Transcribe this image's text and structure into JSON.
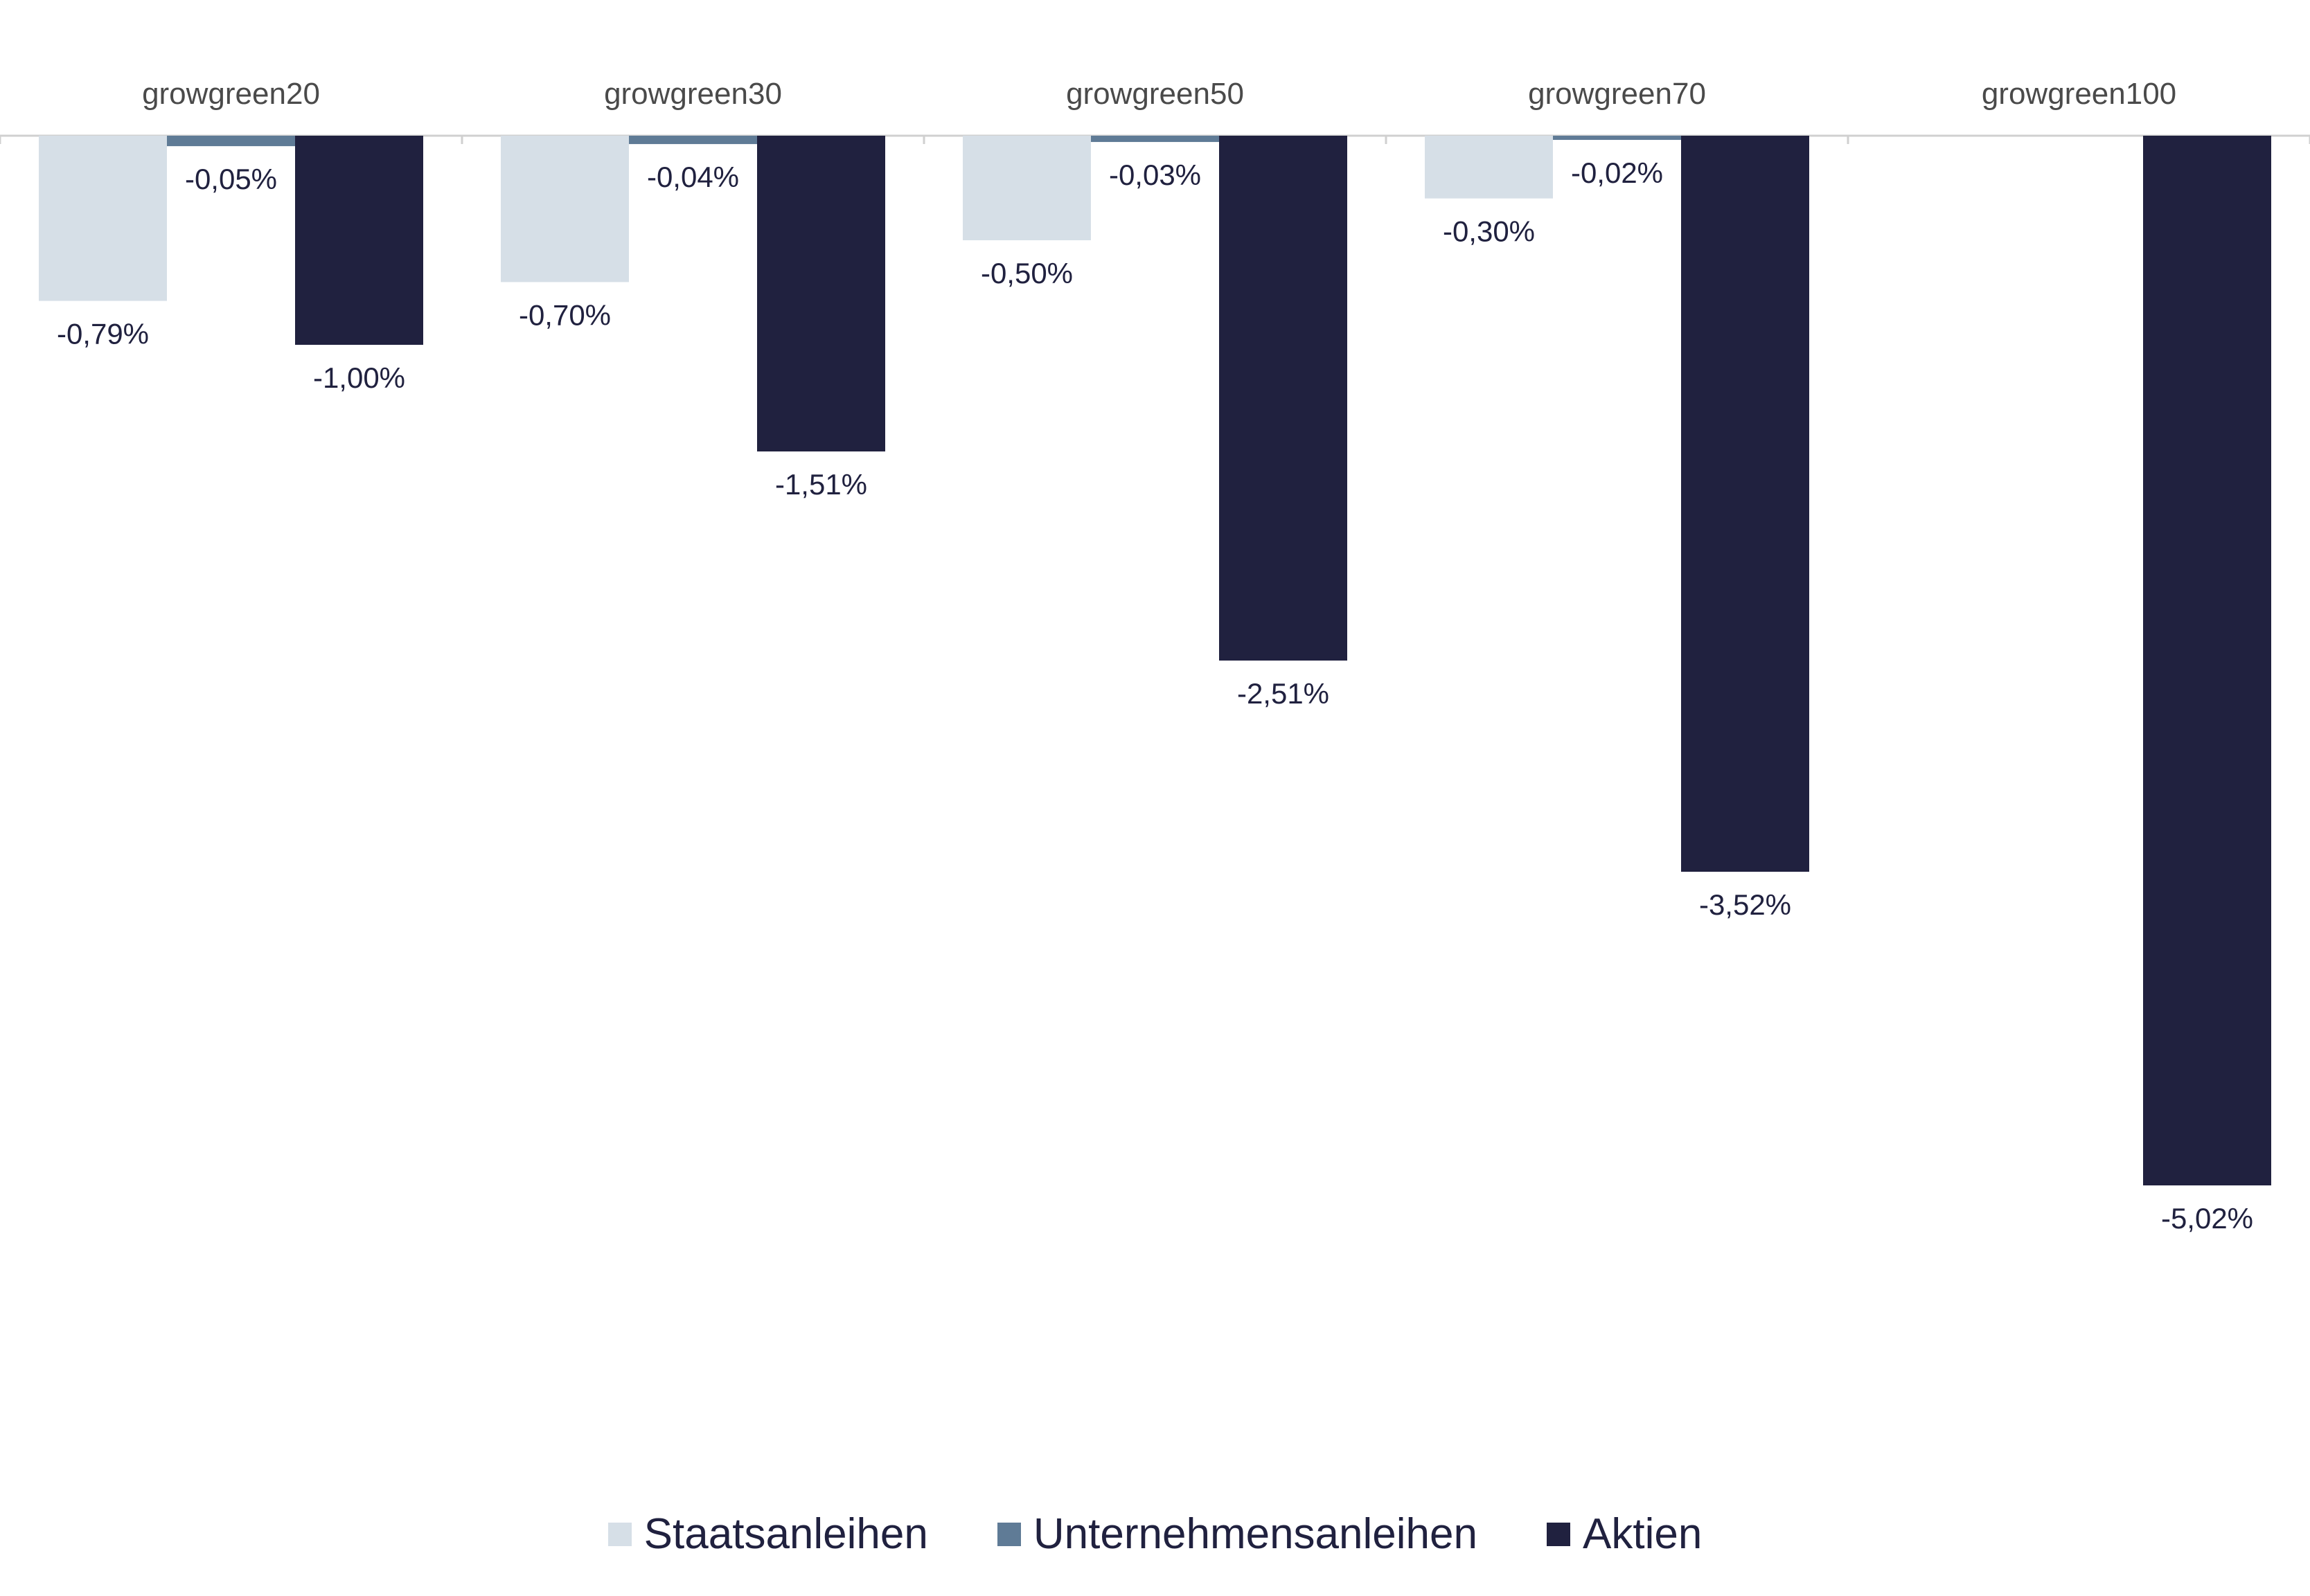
{
  "chart_data": {
    "type": "bar",
    "orientation": "vertical",
    "categories": [
      "growgreen20",
      "growgreen30",
      "growgreen50",
      "growgreen70",
      "growgreen100"
    ],
    "series": [
      {
        "name": "Staatsanleihen",
        "color": "#d6dfe7",
        "values": [
          -0.79,
          -0.7,
          -0.5,
          -0.3,
          null
        ],
        "labels": [
          "-0,79%",
          "-0,70%",
          "-0,50%",
          "-0,30%",
          null
        ]
      },
      {
        "name": "Unternehmensanleihen",
        "color": "#5f7b96",
        "values": [
          -0.05,
          -0.04,
          -0.03,
          -0.02,
          null
        ],
        "labels": [
          "-0,05%",
          "-0,04%",
          "-0,03%",
          "-0,02%",
          null
        ]
      },
      {
        "name": "Aktien",
        "color": "#20213f",
        "values": [
          -1.0,
          -1.51,
          -2.51,
          -3.52,
          -5.02
        ],
        "labels": [
          "-1,00%",
          "-1,51%",
          "-2,51%",
          "-3,52%",
          "-5,02%"
        ]
      }
    ],
    "ylim": [
      -5.02,
      0
    ],
    "category_axis_position": "top",
    "grid": false,
    "legend_position": "bottom-center",
    "data_label_unit": "%"
  }
}
